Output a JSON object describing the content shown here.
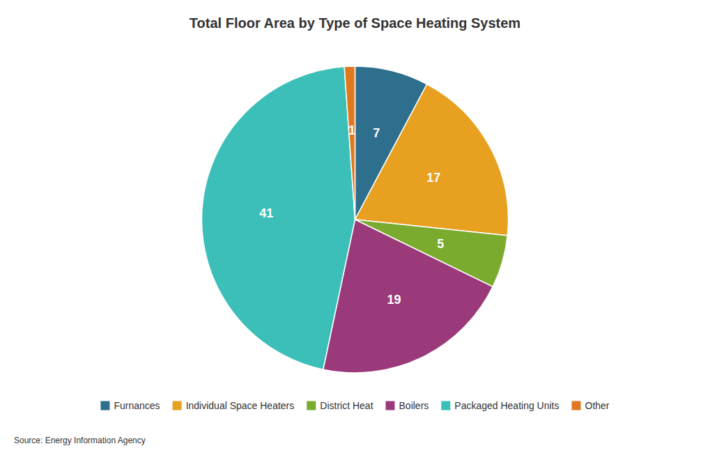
{
  "chart_data": {
    "type": "pie",
    "title": "Total Floor Area by Type of Space Heating System",
    "categories": [
      "Furnances",
      "Individual Space Heaters",
      "District Heat",
      "Boilers",
      "Packaged Heating Units",
      "Other"
    ],
    "values": [
      7,
      17,
      5,
      19,
      41,
      1
    ],
    "colors": [
      "#2e6f8e",
      "#e8a020",
      "#7aaa2e",
      "#9b3a7a",
      "#3bbfb8",
      "#e07820"
    ],
    "data_labels": true,
    "legend": "bottom",
    "annotations": [
      "Source: Energy Information Agency"
    ]
  }
}
